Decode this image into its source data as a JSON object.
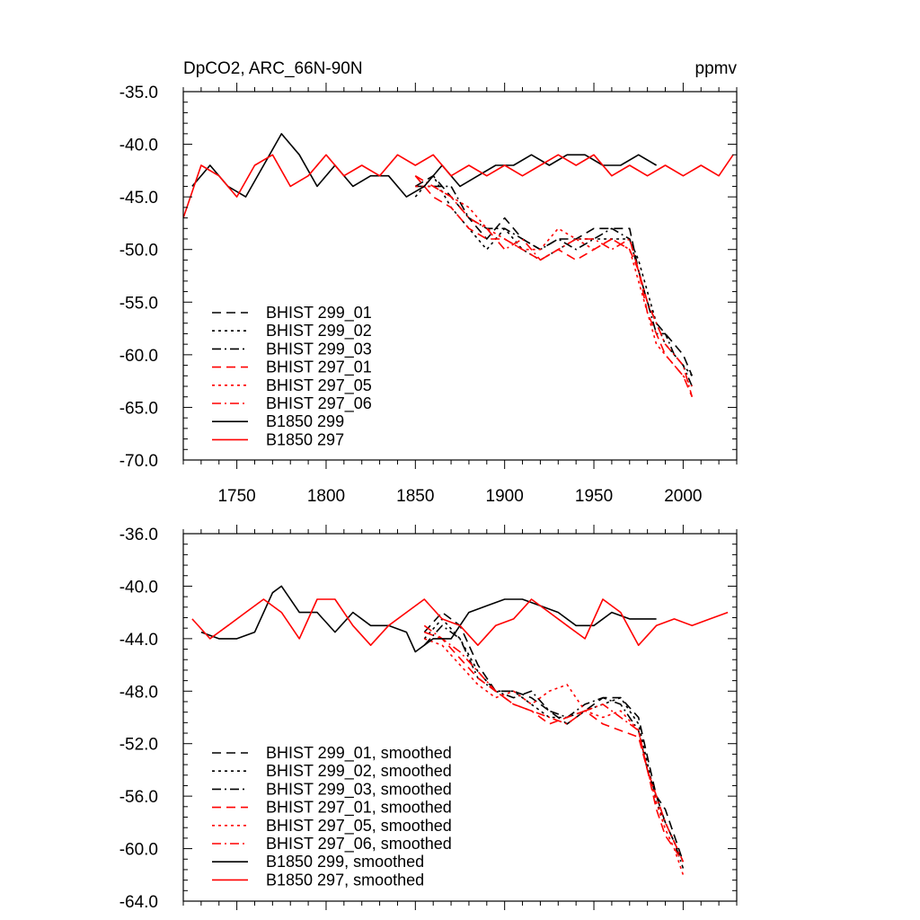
{
  "figure": {
    "title_left": "DpCO2, ARC_66N-90N",
    "title_right": "ppmv"
  },
  "chart_data": [
    {
      "type": "line",
      "panel": "top",
      "xlim": [
        1720,
        2030
      ],
      "ylim": [
        -70.0,
        -35.0
      ],
      "xticks": [
        1750,
        1800,
        1850,
        1900,
        1950,
        2000
      ],
      "yticks": [
        -70.0,
        -65.0,
        -60.0,
        -55.0,
        -50.0,
        -45.0,
        -40.0,
        -35.0
      ],
      "ytick_labels": [
        "-70.0",
        "-65.0",
        "-60.0",
        "-55.0",
        "-50.0",
        "-45.0",
        "-40.0",
        "-35.0"
      ],
      "legend_position": "bottom-left",
      "series": [
        {
          "name": "BHIST 299_01",
          "color": "#000000",
          "style": "dash",
          "x": [
            1850,
            1860,
            1870,
            1880,
            1890,
            1900,
            1910,
            1920,
            1930,
            1940,
            1950,
            1960,
            1970,
            1975,
            1980,
            1985,
            1990,
            1995,
            2000,
            2005
          ],
          "y": [
            -44,
            -43,
            -45,
            -47,
            -49,
            -47,
            -49,
            -50,
            -49,
            -49,
            -48,
            -48,
            -48,
            -52,
            -55,
            -57,
            -58,
            -59,
            -60,
            -62
          ]
        },
        {
          "name": "BHIST 299_02",
          "color": "#000000",
          "style": "dot",
          "x": [
            1850,
            1860,
            1870,
            1880,
            1890,
            1900,
            1910,
            1920,
            1930,
            1940,
            1950,
            1960,
            1970,
            1975,
            1980,
            1985,
            1990,
            1995,
            2000,
            2005
          ],
          "y": [
            -45,
            -43,
            -46,
            -48,
            -50,
            -48,
            -50,
            -51,
            -50,
            -49,
            -49,
            -49,
            -49,
            -51,
            -54,
            -57,
            -59,
            -60,
            -61,
            -62
          ]
        },
        {
          "name": "BHIST 299_03",
          "color": "#000000",
          "style": "dashdot",
          "x": [
            1850,
            1860,
            1870,
            1880,
            1890,
            1900,
            1910,
            1920,
            1930,
            1940,
            1950,
            1960,
            1970,
            1975,
            1980,
            1985,
            1990,
            1995,
            2000,
            2005
          ],
          "y": [
            -44,
            -44,
            -44,
            -47,
            -48,
            -48,
            -49,
            -50,
            -49,
            -50,
            -49,
            -48,
            -49,
            -52,
            -55,
            -58,
            -58,
            -60,
            -61,
            -63
          ]
        },
        {
          "name": "BHIST 297_01",
          "color": "#ff0000",
          "style": "dash",
          "x": [
            1850,
            1860,
            1870,
            1880,
            1890,
            1900,
            1910,
            1920,
            1930,
            1940,
            1950,
            1960,
            1970,
            1975,
            1980,
            1985,
            1990,
            1995,
            2000,
            2005
          ],
          "y": [
            -43,
            -45,
            -46,
            -48,
            -49,
            -49,
            -50,
            -51,
            -50,
            -51,
            -50,
            -49,
            -50,
            -52,
            -56,
            -58,
            -60,
            -61,
            -62,
            -64
          ]
        },
        {
          "name": "BHIST 297_05",
          "color": "#ff0000",
          "style": "dot",
          "x": [
            1850,
            1860,
            1870,
            1880,
            1890,
            1900,
            1910,
            1920,
            1930,
            1940,
            1950,
            1960,
            1970,
            1975,
            1980,
            1985,
            1990,
            1995,
            2000,
            2005
          ],
          "y": [
            -44,
            -44,
            -45,
            -46,
            -48,
            -49,
            -50,
            -50,
            -48,
            -49,
            -50,
            -49,
            -50,
            -53,
            -56,
            -59,
            -60,
            -61,
            -62,
            -63
          ]
        },
        {
          "name": "BHIST 297_06",
          "color": "#ff0000",
          "style": "dashdot",
          "x": [
            1850,
            1860,
            1870,
            1880,
            1890,
            1900,
            1910,
            1920,
            1930,
            1940,
            1950,
            1960,
            1970,
            1975,
            1980,
            1985,
            1990,
            1995,
            2000,
            2005
          ],
          "y": [
            -43,
            -44,
            -45,
            -47,
            -48,
            -50,
            -49,
            -51,
            -50,
            -49,
            -49,
            -50,
            -49,
            -52,
            -55,
            -57,
            -59,
            -60,
            -61,
            -64
          ]
        },
        {
          "name": "B1850 299",
          "color": "#000000",
          "style": "solid",
          "x": [
            1725,
            1735,
            1745,
            1755,
            1765,
            1775,
            1785,
            1795,
            1805,
            1815,
            1825,
            1835,
            1845,
            1855,
            1865,
            1875,
            1885,
            1895,
            1905,
            1915,
            1925,
            1935,
            1945,
            1955,
            1965,
            1975,
            1985
          ],
          "y": [
            -44,
            -42,
            -44,
            -45,
            -42,
            -39,
            -41,
            -44,
            -42,
            -44,
            -43,
            -43,
            -45,
            -44,
            -42,
            -44,
            -43,
            -42,
            -42,
            -41,
            -42,
            -41,
            -41,
            -42,
            -42,
            -41,
            -42
          ]
        },
        {
          "name": "B1850 297",
          "color": "#ff0000",
          "style": "solid",
          "x": [
            1720,
            1730,
            1740,
            1750,
            1760,
            1770,
            1780,
            1790,
            1800,
            1810,
            1820,
            1830,
            1840,
            1850,
            1860,
            1870,
            1880,
            1890,
            1900,
            1910,
            1920,
            1930,
            1940,
            1950,
            1960,
            1970,
            1980,
            1990,
            2000,
            2010,
            2020,
            2028
          ],
          "y": [
            -47,
            -42,
            -43,
            -45,
            -42,
            -41,
            -44,
            -43,
            -41,
            -43,
            -42,
            -43,
            -41,
            -42,
            -41,
            -43,
            -42,
            -43,
            -42,
            -43,
            -42,
            -41,
            -42,
            -41,
            -43,
            -42,
            -43,
            -42,
            -43,
            -42,
            -43,
            -41
          ]
        }
      ]
    },
    {
      "type": "line",
      "panel": "bottom",
      "xlim": [
        1720,
        2030
      ],
      "ylim": [
        -64.0,
        -36.0
      ],
      "xticks": [
        1750,
        1800,
        1850,
        1900,
        1950,
        2000
      ],
      "yticks": [
        -64.0,
        -60.0,
        -56.0,
        -52.0,
        -48.0,
        -44.0,
        -40.0,
        -36.0
      ],
      "ytick_labels": [
        "-64.0",
        "-60.0",
        "-56.0",
        "-52.0",
        "-48.0",
        "-44.0",
        "-40.0",
        "-36.0"
      ],
      "legend_position": "bottom-left",
      "series": [
        {
          "name": "BHIST 299_01, smoothed",
          "color": "#000000",
          "style": "dash",
          "x": [
            1855,
            1865,
            1875,
            1885,
            1895,
            1905,
            1915,
            1925,
            1935,
            1945,
            1955,
            1965,
            1975,
            1980,
            1985,
            1990,
            1995,
            2000
          ],
          "y": [
            -43.5,
            -42,
            -43,
            -46,
            -48,
            -48,
            -48.5,
            -49.5,
            -50.5,
            -49.5,
            -48.5,
            -48.5,
            -50,
            -53,
            -56,
            -57,
            -59,
            -61
          ]
        },
        {
          "name": "BHIST 299_02, smoothed",
          "color": "#000000",
          "style": "dot",
          "x": [
            1855,
            1865,
            1875,
            1885,
            1895,
            1905,
            1915,
            1925,
            1935,
            1945,
            1955,
            1965,
            1975,
            1980,
            1985,
            1990,
            1995,
            2000
          ],
          "y": [
            -44,
            -42.5,
            -44,
            -46.5,
            -48,
            -48,
            -49,
            -50,
            -50,
            -49.5,
            -49,
            -48.5,
            -50.5,
            -53.5,
            -56.5,
            -58,
            -59.5,
            -61
          ]
        },
        {
          "name": "BHIST 299_03, smoothed",
          "color": "#000000",
          "style": "dashdot",
          "x": [
            1855,
            1865,
            1875,
            1885,
            1895,
            1905,
            1915,
            1925,
            1935,
            1945,
            1955,
            1965,
            1975,
            1980,
            1985,
            1990,
            1995,
            2000
          ],
          "y": [
            -44.5,
            -43,
            -44,
            -47,
            -48,
            -48.5,
            -48,
            -49.5,
            -50,
            -49,
            -48.5,
            -49,
            -51,
            -54,
            -56,
            -58,
            -59.5,
            -61.5
          ]
        },
        {
          "name": "BHIST 297_01, smoothed",
          "color": "#ff0000",
          "style": "dash",
          "x": [
            1855,
            1865,
            1875,
            1885,
            1895,
            1905,
            1915,
            1925,
            1935,
            1945,
            1955,
            1965,
            1975,
            1980,
            1985,
            1990,
            1995,
            2000
          ],
          "y": [
            -43.5,
            -44,
            -45.5,
            -47,
            -48,
            -49,
            -49.5,
            -50.5,
            -50,
            -49.5,
            -50.5,
            -51,
            -51.5,
            -54,
            -57,
            -59,
            -60,
            -61
          ]
        },
        {
          "name": "BHIST 297_05, smoothed",
          "color": "#ff0000",
          "style": "dot",
          "x": [
            1855,
            1865,
            1875,
            1885,
            1895,
            1905,
            1915,
            1925,
            1935,
            1945,
            1955,
            1965,
            1975,
            1980,
            1985,
            1990,
            1995,
            2000
          ],
          "y": [
            -44,
            -44.5,
            -46,
            -47.5,
            -48.5,
            -48,
            -49,
            -48,
            -47.5,
            -49.5,
            -50,
            -49.5,
            -51,
            -54,
            -56.5,
            -58.5,
            -60,
            -62
          ]
        },
        {
          "name": "BHIST 297_06, smoothed",
          "color": "#ff0000",
          "style": "dashdot",
          "x": [
            1855,
            1865,
            1875,
            1885,
            1895,
            1905,
            1915,
            1925,
            1935,
            1945,
            1955,
            1965,
            1975,
            1980,
            1985,
            1990,
            1995,
            2000
          ],
          "y": [
            -43,
            -44,
            -45,
            -46.5,
            -48,
            -49,
            -49.5,
            -50,
            -50.5,
            -49.5,
            -49,
            -50,
            -51,
            -54,
            -56,
            -58,
            -59.5,
            -61
          ]
        },
        {
          "name": "B1850 299, smoothed",
          "color": "#000000",
          "style": "solid",
          "x": [
            1730,
            1740,
            1750,
            1760,
            1770,
            1775,
            1785,
            1795,
            1805,
            1815,
            1825,
            1835,
            1845,
            1850,
            1860,
            1870,
            1880,
            1890,
            1900,
            1910,
            1920,
            1930,
            1940,
            1950,
            1960,
            1970,
            1980,
            1985
          ],
          "y": [
            -43.5,
            -44,
            -44,
            -43.5,
            -40.5,
            -40,
            -42,
            -42,
            -43.5,
            -42,
            -43,
            -43,
            -43.5,
            -45,
            -44,
            -44,
            -42,
            -41.5,
            -41,
            -41,
            -41.5,
            -42,
            -43,
            -43,
            -42,
            -42.5,
            -42.5,
            -42.5
          ]
        },
        {
          "name": "B1850 297, smoothed",
          "color": "#ff0000",
          "style": "solid",
          "x": [
            1725,
            1735,
            1745,
            1755,
            1765,
            1775,
            1785,
            1795,
            1805,
            1815,
            1825,
            1835,
            1845,
            1855,
            1865,
            1875,
            1885,
            1895,
            1905,
            1915,
            1925,
            1935,
            1945,
            1955,
            1965,
            1975,
            1985,
            1995,
            2005,
            2015,
            2025
          ],
          "y": [
            -42.5,
            -44,
            -43,
            -42,
            -41,
            -42,
            -44,
            -41,
            -41,
            -43,
            -44.5,
            -43,
            -42,
            -41,
            -42.5,
            -43,
            -44.5,
            -43,
            -42.5,
            -41,
            -42,
            -43,
            -44,
            -41,
            -42,
            -44.5,
            -43,
            -42.5,
            -43,
            -42.5,
            -42
          ]
        }
      ]
    }
  ]
}
